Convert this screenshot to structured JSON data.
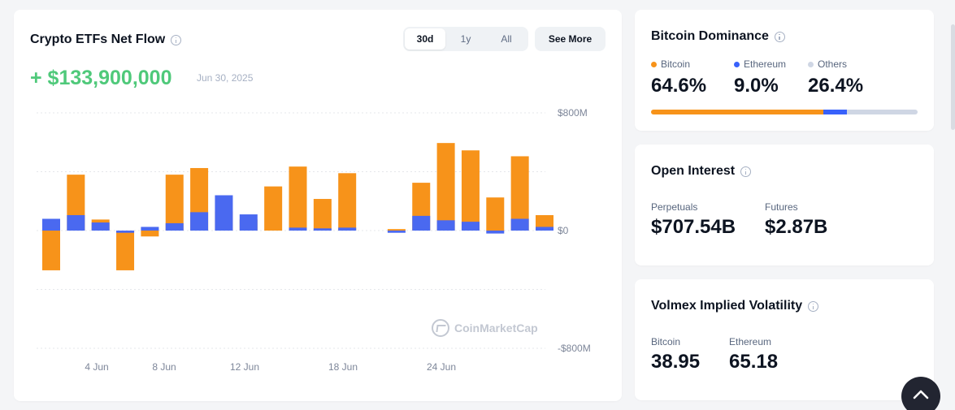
{
  "etf": {
    "title": "Crypto ETFs Net Flow",
    "ranges": [
      "30d",
      "1y",
      "All"
    ],
    "active_range": "30d",
    "see_more": "See More",
    "net_flow": "+ $133,900,000",
    "date": "Jun 30, 2025",
    "watermark": "CoinMarketCap"
  },
  "chart_data": {
    "type": "bar",
    "stacked": true,
    "ylim": [
      -800,
      800
    ],
    "y_unit": "$M",
    "y_ticks": [
      "$800M",
      "$0",
      "-$800M"
    ],
    "x_tick_labels": [
      "4 Jun",
      "8 Jun",
      "12 Jun",
      "18 Jun",
      "24 Jun"
    ],
    "colors": {
      "btc": "#f7931a",
      "eth": "#4a69f0"
    },
    "bars": [
      {
        "btc": -270,
        "eth": 80
      },
      {
        "btc": 380,
        "eth": 105
      },
      {
        "btc": 75,
        "eth": 55
      },
      {
        "btc": -270,
        "eth": -15
      },
      {
        "btc": -40,
        "eth": 25
      },
      {
        "btc": 380,
        "eth": 50
      },
      {
        "btc": 425,
        "eth": 125
      },
      {
        "btc": 130,
        "eth": 240
      },
      {
        "btc": 75,
        "eth": 110
      },
      {
        "btc": 300,
        "eth": 0
      },
      {
        "btc": 435,
        "eth": 20
      },
      {
        "btc": 215,
        "eth": 15
      },
      {
        "btc": 390,
        "eth": 20
      },
      {
        "btc": 0,
        "eth": 0
      },
      {
        "btc": 10,
        "eth": -15
      },
      {
        "btc": 325,
        "eth": 100
      },
      {
        "btc": 595,
        "eth": 70
      },
      {
        "btc": 545,
        "eth": 60
      },
      {
        "btc": 225,
        "eth": -20
      },
      {
        "btc": 505,
        "eth": 80
      },
      {
        "btc": 105,
        "eth": 25
      }
    ]
  },
  "dominance": {
    "title": "Bitcoin Dominance",
    "items": [
      {
        "label": "Bitcoin",
        "value": "64.6%",
        "pct": 64.6,
        "color": "#f7931a"
      },
      {
        "label": "Ethereum",
        "value": "9.0%",
        "pct": 9.0,
        "color": "#3861fb"
      },
      {
        "label": "Others",
        "value": "26.4%",
        "pct": 26.4,
        "color": "#cfd6e4"
      }
    ]
  },
  "open_interest": {
    "title": "Open Interest",
    "perpetuals_label": "Perpetuals",
    "perpetuals_value": "$707.54B",
    "futures_label": "Futures",
    "futures_value": "$2.87B"
  },
  "volatility": {
    "title": "Volmex Implied Volatility",
    "bitcoin_label": "Bitcoin",
    "bitcoin_value": "38.95",
    "ethereum_label": "Ethereum",
    "ethereum_value": "65.18"
  }
}
